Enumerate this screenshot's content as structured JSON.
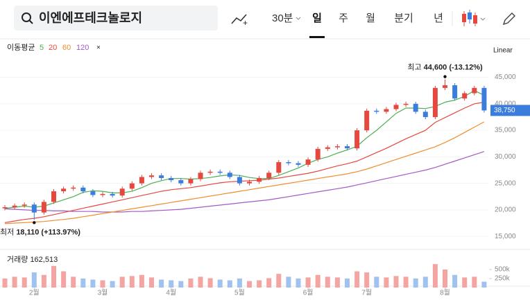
{
  "search": {
    "query": "이엔에프테크놀로지"
  },
  "toolbar": {
    "interval": "30분",
    "periods": [
      "일",
      "주",
      "월",
      "분기",
      "년"
    ],
    "selected_index": 0
  },
  "chart_data": {
    "type": "candlestick",
    "scale": "Linear",
    "ma_title": "이동평균",
    "categories": [
      null,
      null,
      null,
      "2월",
      null,
      null,
      null,
      null,
      null,
      null,
      "3월",
      null,
      null,
      null,
      null,
      null,
      null,
      "4월",
      null,
      null,
      null,
      null,
      null,
      null,
      "5월",
      null,
      null,
      null,
      null,
      null,
      null,
      "6월",
      null,
      null,
      null,
      null,
      null,
      "7월",
      null,
      null,
      null,
      null,
      null,
      null,
      null,
      "8월",
      null,
      null,
      null,
      null
    ],
    "open": [
      20300,
      20500,
      20800,
      21000,
      19500,
      21500,
      23500,
      24000,
      24200,
      23500,
      22800,
      23000,
      22700,
      24000,
      25000,
      26200,
      26500,
      26000,
      25600,
      25000,
      25800,
      27000,
      27200,
      27000,
      26200,
      25000,
      25300,
      26000,
      27000,
      29000,
      28800,
      28500,
      29500,
      31500,
      31800,
      32000,
      31600,
      35000,
      38700,
      38500,
      39000,
      39800,
      40000,
      38500,
      37500,
      43000,
      43500,
      41000,
      42000,
      43000
    ],
    "high": [
      20900,
      21200,
      21400,
      21400,
      21900,
      23900,
      24400,
      24600,
      24600,
      23900,
      23400,
      23400,
      24400,
      25400,
      26600,
      26900,
      26900,
      26400,
      26000,
      26200,
      27400,
      27600,
      27600,
      27400,
      26600,
      25700,
      26400,
      27400,
      29400,
      29400,
      29200,
      29900,
      31900,
      32200,
      32400,
      32400,
      35400,
      39100,
      39100,
      39400,
      40200,
      40400,
      40400,
      38900,
      43400,
      44600,
      43900,
      42400,
      43400,
      43400
    ],
    "low": [
      19900,
      20100,
      20400,
      18110,
      19100,
      21100,
      23100,
      23600,
      23100,
      22400,
      22400,
      22300,
      22300,
      23600,
      24600,
      25800,
      25600,
      25200,
      24600,
      24600,
      25400,
      26600,
      26600,
      25800,
      24600,
      24600,
      24900,
      25600,
      26600,
      28400,
      28100,
      28100,
      29100,
      31100,
      31400,
      31200,
      31200,
      34600,
      38100,
      38100,
      38600,
      39400,
      38100,
      37100,
      37100,
      42600,
      40600,
      40600,
      41600,
      38350
    ],
    "close": [
      20500,
      20800,
      21000,
      19500,
      21500,
      23500,
      24000,
      24200,
      23500,
      22800,
      23000,
      22700,
      24000,
      25000,
      26200,
      26500,
      26000,
      25600,
      25000,
      25800,
      27000,
      27200,
      27000,
      26200,
      25000,
      25300,
      26000,
      27000,
      29000,
      28800,
      28500,
      29500,
      31500,
      31800,
      32000,
      31600,
      35000,
      38700,
      38500,
      39000,
      39800,
      40000,
      38500,
      37500,
      43000,
      43500,
      41000,
      42000,
      43000,
      38750
    ],
    "up_color": "#e5483f",
    "down_color": "#3b7ddd",
    "ylim": [
      12800,
      52000
    ],
    "yticks": [
      {
        "value": 15000,
        "label": "15,000"
      },
      {
        "value": 20000,
        "label": "20,000"
      },
      {
        "value": 25000,
        "label": "25,000"
      },
      {
        "value": 30000,
        "label": "30,000"
      },
      {
        "value": 35000,
        "label": "35,000"
      },
      {
        "value": 40000,
        "label": "40,000"
      },
      {
        "value": 45000,
        "label": "45,000"
      }
    ],
    "close_label": "38,750",
    "high_label": {
      "prefix": "최고",
      "text": "44,600 (-13.12%)"
    },
    "low_label": {
      "prefix": "최저",
      "text": "18,110 (+113.97%)"
    },
    "series": [
      {
        "name": "5",
        "color": "#4caf50",
        "values": [
          20300,
          20500,
          20700,
          20500,
          20700,
          21300,
          21900,
          22500,
          23300,
          23600,
          23500,
          23200,
          23200,
          23500,
          24200,
          25000,
          25500,
          25900,
          25900,
          25800,
          25900,
          26100,
          26400,
          26600,
          26500,
          26100,
          25900,
          25900,
          26500,
          27200,
          27900,
          28800,
          29500,
          30000,
          30700,
          31300,
          32000,
          33600,
          35000,
          36600,
          38200,
          39200,
          39200,
          39100,
          39500,
          40300,
          40700,
          41400,
          42500,
          41600
        ]
      },
      {
        "name": "20",
        "color": "#e5483f",
        "values": [
          17600,
          17900,
          18200,
          18400,
          18700,
          19100,
          19500,
          19900,
          20300,
          20700,
          21100,
          21500,
          21900,
          22300,
          22700,
          23100,
          23500,
          23800,
          24000,
          24200,
          24500,
          24800,
          25100,
          25300,
          25400,
          25500,
          25600,
          25800,
          26000,
          26300,
          26600,
          26900,
          27300,
          27800,
          28300,
          28700,
          29200,
          30000,
          30800,
          31600,
          32500,
          33400,
          34200,
          35000,
          36500,
          37400,
          38300,
          39200,
          40000,
          40300
        ]
      },
      {
        "name": "60",
        "color": "#f08c2e",
        "values": [
          17400,
          17500,
          17600,
          17700,
          17800,
          18000,
          18200,
          18400,
          18700,
          19000,
          19300,
          19600,
          19900,
          20200,
          20500,
          20800,
          21100,
          21400,
          21700,
          22000,
          22300,
          22600,
          22900,
          23200,
          23500,
          23800,
          24100,
          24400,
          24700,
          25000,
          25300,
          25600,
          25900,
          26200,
          26500,
          26800,
          27200,
          27700,
          28300,
          28900,
          29500,
          30100,
          30700,
          31300,
          31900,
          32700,
          33600,
          34600,
          35600,
          36600
        ]
      },
      {
        "name": "120",
        "color": "#a05ac8",
        "values": [
          20200,
          20100,
          20000,
          19900,
          19900,
          19800,
          19800,
          19700,
          19700,
          19700,
          19600,
          19600,
          19600,
          19700,
          19700,
          19800,
          19900,
          20000,
          20100,
          20300,
          20500,
          20700,
          20900,
          21100,
          21300,
          21500,
          21700,
          21900,
          22200,
          22500,
          22800,
          23100,
          23400,
          23700,
          24000,
          24300,
          24700,
          25100,
          25500,
          25900,
          26300,
          26700,
          27100,
          27500,
          28000,
          28600,
          29200,
          29800,
          30400,
          31000
        ]
      }
    ],
    "volume": {
      "title": "거래량",
      "last_label": "162,513",
      "up_color": "#f4a5a1",
      "down_color": "#9fc2f1",
      "values": [
        250000,
        300000,
        280000,
        420000,
        350000,
        600000,
        450000,
        300000,
        250000,
        220000,
        200000,
        180000,
        300000,
        320000,
        350000,
        280000,
        220000,
        200000,
        180000,
        250000,
        300000,
        260000,
        220000,
        200000,
        250000,
        180000,
        200000,
        260000,
        380000,
        300000,
        250000,
        280000,
        350000,
        300000,
        280000,
        250000,
        450000,
        420000,
        300000,
        280000,
        320000,
        300000,
        250000,
        300000,
        650000,
        500000,
        350000,
        280000,
        300000,
        162513
      ],
      "ylim": [
        0,
        1000000
      ],
      "yticks": [
        {
          "value": 500000,
          "label": "500k"
        },
        {
          "value": 250000,
          "label": "250k"
        }
      ]
    }
  }
}
